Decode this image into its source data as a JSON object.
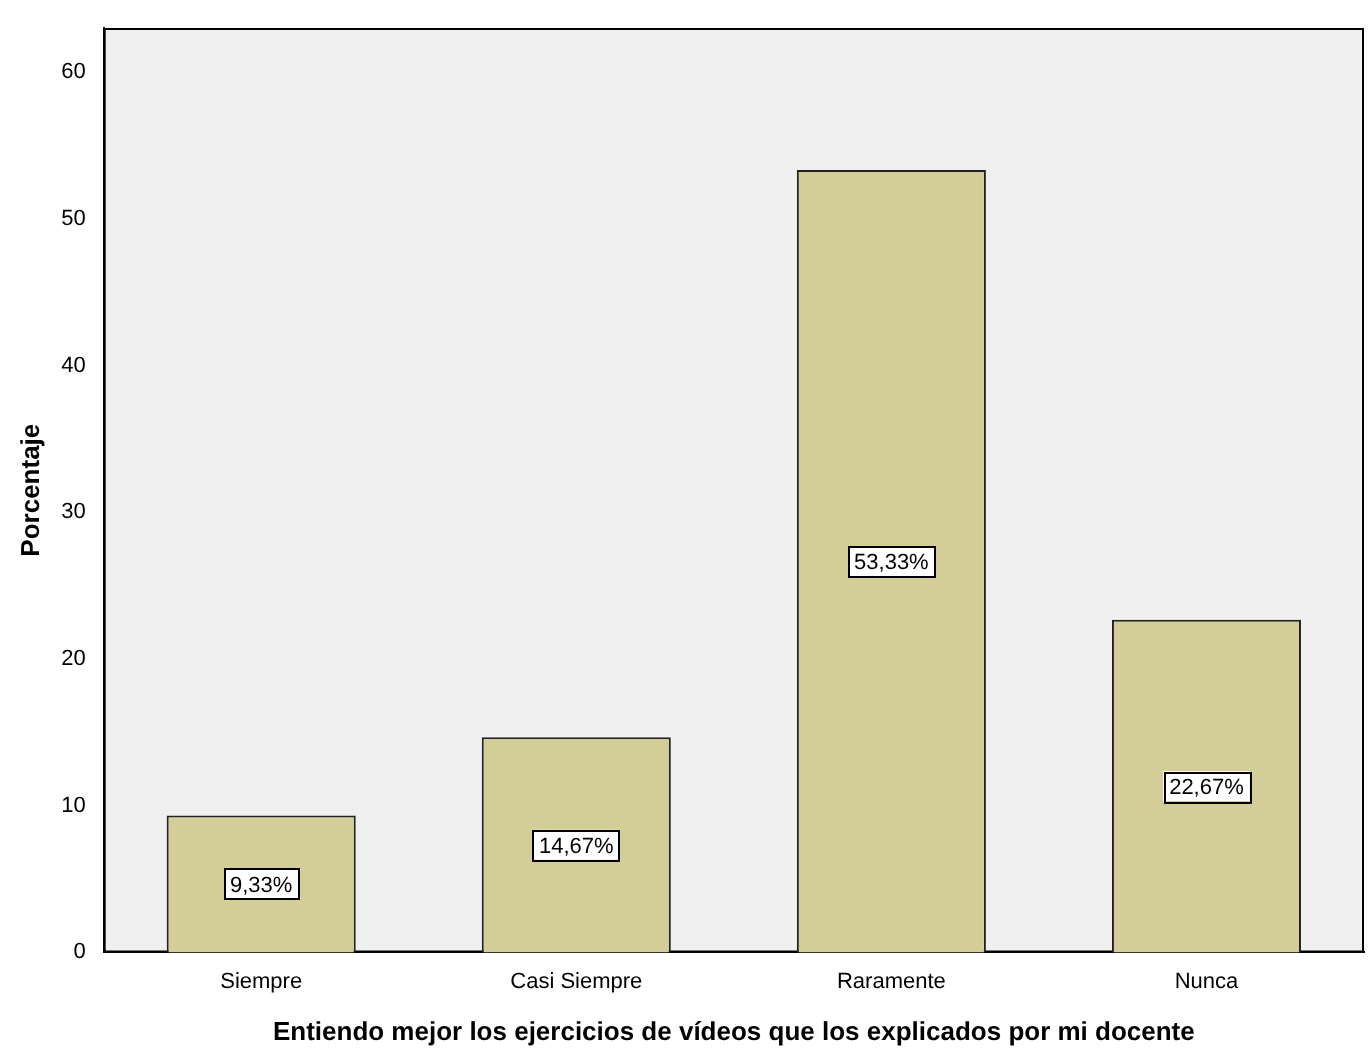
{
  "chart_data": {
    "type": "bar",
    "xlabel": "Entiendo mejor los ejercicios de vídeos que los explicados por mi docente",
    "ylabel": "Porcentaje",
    "categories": [
      "Siempre",
      "Casi Siempre",
      "Raramente",
      "Nunca"
    ],
    "values": [
      9.33,
      14.67,
      53.33,
      22.67
    ],
    "value_labels": [
      "9,33%",
      "14,67%",
      "53,33%",
      "22,67%"
    ],
    "color": "#d3ce98",
    "ylim": [
      0,
      63
    ],
    "yticks": [
      0,
      10,
      20,
      30,
      40,
      50,
      60
    ],
    "grid": false,
    "legend": false
  }
}
